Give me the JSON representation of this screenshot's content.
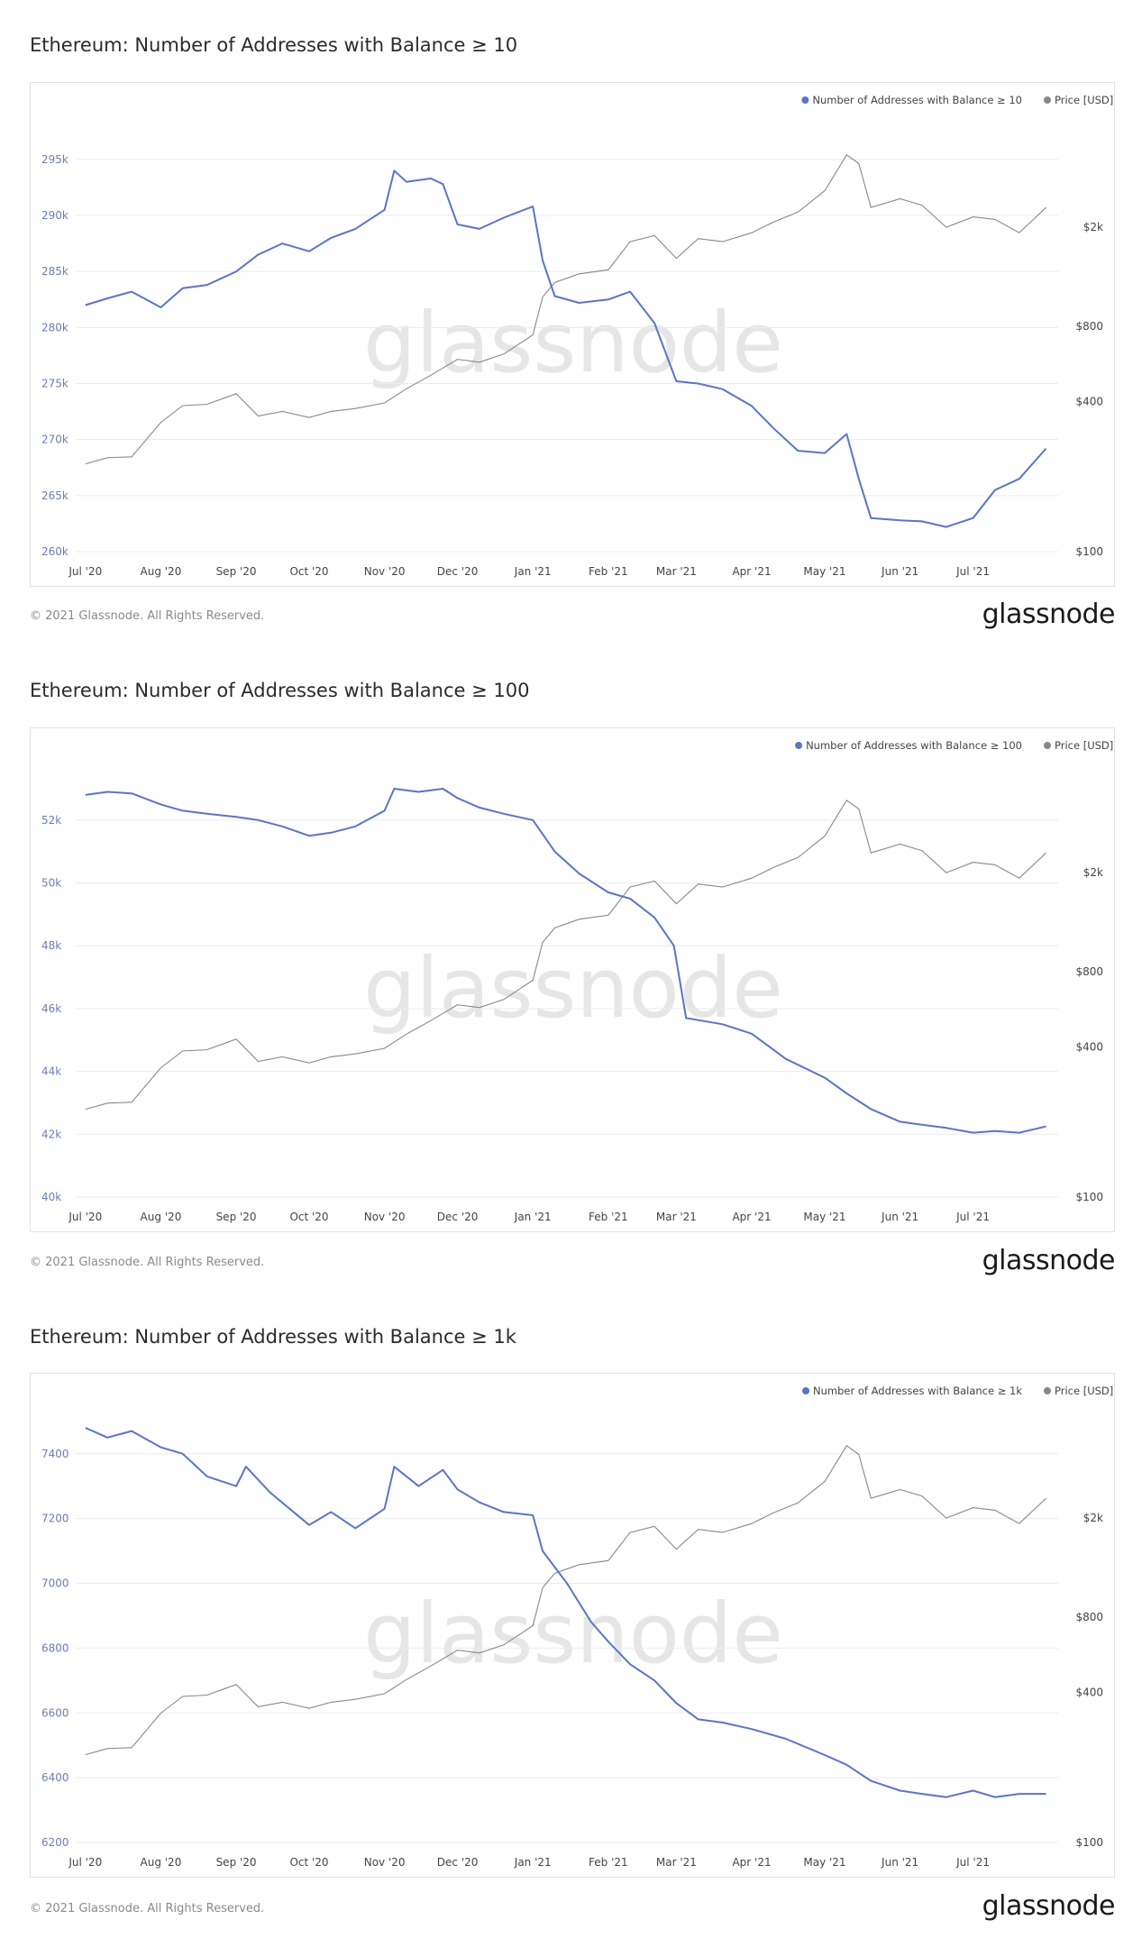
{
  "footer": {
    "copyright": "© 2021 Glassnode. All Rights Reserved.",
    "logo": "glassnode"
  },
  "watermark": "glassnode",
  "colors": {
    "series": "#5b74c7",
    "price": "#888888",
    "grid": "#ececec"
  },
  "chart_data": [
    {
      "type": "line",
      "title": "Ethereum: Number of Addresses with Balance ≥ 10",
      "legend": [
        "Number of Addresses with Balance ≥ 10",
        "Price [USD]"
      ],
      "legend_placement": "top-right",
      "x_ticks": [
        "Jul '20",
        "Aug '20",
        "Sep '20",
        "Oct '20",
        "Nov '20",
        "Dec '20",
        "Jan '21",
        "Feb '21",
        "Mar '21",
        "Apr '21",
        "May '21",
        "Jun '21",
        "Jul '21"
      ],
      "y_left_ticks": [
        "260k",
        "265k",
        "270k",
        "275k",
        "280k",
        "285k",
        "290k",
        "295k"
      ],
      "y_left_range": [
        260000,
        297000
      ],
      "y_right_ticks": [
        "$100",
        "$400",
        "$800",
        "$2k"
      ],
      "grid": true,
      "series": [
        {
          "name": "Number of Addresses with Balance ≥ 10",
          "axis": "left",
          "x": [
            "2020-07-01",
            "2020-07-10",
            "2020-07-20",
            "2020-08-01",
            "2020-08-10",
            "2020-08-20",
            "2020-09-01",
            "2020-09-10",
            "2020-09-20",
            "2020-10-01",
            "2020-10-10",
            "2020-10-20",
            "2020-11-01",
            "2020-11-05",
            "2020-11-10",
            "2020-11-20",
            "2020-11-25",
            "2020-12-01",
            "2020-12-10",
            "2020-12-20",
            "2021-01-01",
            "2021-01-05",
            "2021-01-10",
            "2021-01-20",
            "2021-02-01",
            "2021-02-10",
            "2021-02-20",
            "2021-03-01",
            "2021-03-10",
            "2021-03-20",
            "2021-04-01",
            "2021-04-10",
            "2021-04-20",
            "2021-05-01",
            "2021-05-10",
            "2021-05-15",
            "2021-05-20",
            "2021-06-01",
            "2021-06-10",
            "2021-06-20",
            "2021-07-01",
            "2021-07-10",
            "2021-07-20",
            "2021-07-31"
          ],
          "values": [
            282000,
            282600,
            283200,
            281800,
            283500,
            283800,
            285000,
            286500,
            287500,
            286800,
            288000,
            288800,
            290500,
            294000,
            293000,
            293300,
            292800,
            289200,
            288800,
            289800,
            290800,
            286000,
            282800,
            282200,
            282500,
            283200,
            280400,
            275200,
            275000,
            274500,
            273000,
            271000,
            269000,
            268800,
            270500,
            266500,
            263000,
            262800,
            262700,
            262200,
            263000,
            265500,
            266500,
            269200
          ]
        },
        {
          "name": "Price [USD]",
          "axis": "right",
          "x": [
            "2020-07-01",
            "2020-07-10",
            "2020-07-20",
            "2020-08-01",
            "2020-08-10",
            "2020-08-20",
            "2020-09-01",
            "2020-09-10",
            "2020-09-20",
            "2020-10-01",
            "2020-10-10",
            "2020-10-20",
            "2020-11-01",
            "2020-11-10",
            "2020-11-20",
            "2020-12-01",
            "2020-12-10",
            "2020-12-20",
            "2021-01-01",
            "2021-01-05",
            "2021-01-10",
            "2021-01-20",
            "2021-02-01",
            "2021-02-10",
            "2021-02-20",
            "2021-03-01",
            "2021-03-10",
            "2021-03-20",
            "2021-04-01",
            "2021-04-10",
            "2021-04-20",
            "2021-05-01",
            "2021-05-10",
            "2021-05-15",
            "2021-05-20",
            "2021-06-01",
            "2021-06-10",
            "2021-06-20",
            "2021-07-01",
            "2021-07-10",
            "2021-07-20",
            "2021-07-31"
          ],
          "values": [
            225,
            238,
            240,
            330,
            385,
            390,
            430,
            350,
            365,
            345,
            365,
            375,
            395,
            450,
            510,
            590,
            575,
            620,
            740,
            1050,
            1200,
            1300,
            1350,
            1750,
            1850,
            1500,
            1800,
            1750,
            1900,
            2100,
            2300,
            2800,
            3900,
            3600,
            2400,
            2600,
            2450,
            2000,
            2200,
            2150,
            1900,
            2400
          ]
        }
      ]
    },
    {
      "type": "line",
      "title": "Ethereum: Number of Addresses with Balance ≥ 100",
      "legend": [
        "Number of Addresses with Balance ≥ 100",
        "Price [USD]"
      ],
      "legend_placement": "top-right",
      "x_ticks": [
        "Jul '20",
        "Aug '20",
        "Sep '20",
        "Oct '20",
        "Nov '20",
        "Dec '20",
        "Jan '21",
        "Feb '21",
        "Mar '21",
        "Apr '21",
        "May '21",
        "Jun '21",
        "Jul '21"
      ],
      "y_left_ticks": [
        "40k",
        "42k",
        "44k",
        "46k",
        "48k",
        "50k",
        "52k"
      ],
      "y_left_range": [
        40000,
        53200
      ],
      "y_right_ticks": [
        "$100",
        "$400",
        "$800",
        "$2k"
      ],
      "grid": true,
      "series": [
        {
          "name": "Number of Addresses with Balance ≥ 100",
          "axis": "left",
          "x": [
            "2020-07-01",
            "2020-07-10",
            "2020-07-20",
            "2020-08-01",
            "2020-08-10",
            "2020-08-20",
            "2020-09-01",
            "2020-09-10",
            "2020-09-20",
            "2020-10-01",
            "2020-10-10",
            "2020-10-20",
            "2020-11-01",
            "2020-11-05",
            "2020-11-15",
            "2020-11-25",
            "2020-12-01",
            "2020-12-10",
            "2020-12-20",
            "2021-01-01",
            "2021-01-10",
            "2021-01-20",
            "2021-02-01",
            "2021-02-10",
            "2021-02-20",
            "2021-02-28",
            "2021-03-05",
            "2021-03-20",
            "2021-04-01",
            "2021-04-15",
            "2021-05-01",
            "2021-05-10",
            "2021-05-20",
            "2021-06-01",
            "2021-06-10",
            "2021-06-20",
            "2021-07-01",
            "2021-07-10",
            "2021-07-20",
            "2021-07-31"
          ],
          "values": [
            52800,
            52900,
            52850,
            52500,
            52300,
            52200,
            52100,
            52000,
            51800,
            51500,
            51600,
            51800,
            52300,
            53000,
            52900,
            53000,
            52700,
            52400,
            52200,
            52000,
            51000,
            50300,
            49700,
            49500,
            48900,
            48000,
            45700,
            45500,
            45200,
            44400,
            43800,
            43300,
            42800,
            42400,
            42300,
            42200,
            42050,
            42100,
            42050,
            42250
          ]
        },
        {
          "name": "Price [USD]",
          "axis": "right",
          "x": [
            "2020-07-01",
            "2020-07-10",
            "2020-07-20",
            "2020-08-01",
            "2020-08-10",
            "2020-08-20",
            "2020-09-01",
            "2020-09-10",
            "2020-09-20",
            "2020-10-01",
            "2020-10-10",
            "2020-10-20",
            "2020-11-01",
            "2020-11-10",
            "2020-11-20",
            "2020-12-01",
            "2020-12-10",
            "2020-12-20",
            "2021-01-01",
            "2021-01-05",
            "2021-01-10",
            "2021-01-20",
            "2021-02-01",
            "2021-02-10",
            "2021-02-20",
            "2021-03-01",
            "2021-03-10",
            "2021-03-20",
            "2021-04-01",
            "2021-04-10",
            "2021-04-20",
            "2021-05-01",
            "2021-05-10",
            "2021-05-15",
            "2021-05-20",
            "2021-06-01",
            "2021-06-10",
            "2021-06-20",
            "2021-07-01",
            "2021-07-10",
            "2021-07-20",
            "2021-07-31"
          ],
          "values": [
            225,
            238,
            240,
            330,
            385,
            390,
            430,
            350,
            365,
            345,
            365,
            375,
            395,
            450,
            510,
            590,
            575,
            620,
            740,
            1050,
            1200,
            1300,
            1350,
            1750,
            1850,
            1500,
            1800,
            1750,
            1900,
            2100,
            2300,
            2800,
            3900,
            3600,
            2400,
            2600,
            2450,
            2000,
            2200,
            2150,
            1900,
            2400
          ]
        }
      ]
    },
    {
      "type": "line",
      "title": "Ethereum: Number of Addresses with Balance ≥ 1k",
      "legend": [
        "Number of Addresses with Balance ≥ 1k",
        "Price [USD]"
      ],
      "legend_placement": "top-right",
      "x_ticks": [
        "Jul '20",
        "Aug '20",
        "Sep '20",
        "Oct '20",
        "Nov '20",
        "Dec '20",
        "Jan '21",
        "Feb '21",
        "Mar '21",
        "Apr '21",
        "May '21",
        "Jun '21",
        "Jul '21"
      ],
      "y_left_ticks": [
        "6200",
        "6400",
        "6600",
        "6800",
        "7000",
        "7200",
        "7400"
      ],
      "y_left_range": [
        6200,
        7480
      ],
      "y_right_ticks": [
        "$100",
        "$400",
        "$800",
        "$2k"
      ],
      "grid": true,
      "series": [
        {
          "name": "Number of Addresses with Balance ≥ 1k",
          "axis": "left",
          "x": [
            "2020-07-01",
            "2020-07-10",
            "2020-07-20",
            "2020-08-01",
            "2020-08-10",
            "2020-08-20",
            "2020-09-01",
            "2020-09-05",
            "2020-09-15",
            "2020-10-01",
            "2020-10-10",
            "2020-10-20",
            "2020-11-01",
            "2020-11-05",
            "2020-11-15",
            "2020-11-25",
            "2020-12-01",
            "2020-12-10",
            "2020-12-20",
            "2021-01-01",
            "2021-01-05",
            "2021-01-15",
            "2021-01-25",
            "2021-02-01",
            "2021-02-10",
            "2021-02-20",
            "2021-03-01",
            "2021-03-10",
            "2021-03-20",
            "2021-04-01",
            "2021-04-15",
            "2021-05-01",
            "2021-05-10",
            "2021-05-20",
            "2021-06-01",
            "2021-06-10",
            "2021-06-20",
            "2021-07-01",
            "2021-07-10",
            "2021-07-20",
            "2021-07-31"
          ],
          "values": [
            7480,
            7450,
            7470,
            7420,
            7400,
            7330,
            7300,
            7360,
            7280,
            7180,
            7220,
            7170,
            7230,
            7360,
            7300,
            7350,
            7290,
            7250,
            7220,
            7210,
            7100,
            7000,
            6880,
            6820,
            6750,
            6700,
            6630,
            6580,
            6570,
            6550,
            6520,
            6470,
            6440,
            6390,
            6360,
            6350,
            6340,
            6360,
            6340,
            6350,
            6350
          ]
        },
        {
          "name": "Price [USD]",
          "axis": "right",
          "x": [
            "2020-07-01",
            "2020-07-10",
            "2020-07-20",
            "2020-08-01",
            "2020-08-10",
            "2020-08-20",
            "2020-09-01",
            "2020-09-10",
            "2020-09-20",
            "2020-10-01",
            "2020-10-10",
            "2020-10-20",
            "2020-11-01",
            "2020-11-10",
            "2020-11-20",
            "2020-12-01",
            "2020-12-10",
            "2020-12-20",
            "2021-01-01",
            "2021-01-05",
            "2021-01-10",
            "2021-01-20",
            "2021-02-01",
            "2021-02-10",
            "2021-02-20",
            "2021-03-01",
            "2021-03-10",
            "2021-03-20",
            "2021-04-01",
            "2021-04-10",
            "2021-04-20",
            "2021-05-01",
            "2021-05-10",
            "2021-05-15",
            "2021-05-20",
            "2021-06-01",
            "2021-06-10",
            "2021-06-20",
            "2021-07-01",
            "2021-07-10",
            "2021-07-20",
            "2021-07-31"
          ],
          "values": [
            225,
            238,
            240,
            330,
            385,
            390,
            430,
            350,
            365,
            345,
            365,
            375,
            395,
            450,
            510,
            590,
            575,
            620,
            740,
            1050,
            1200,
            1300,
            1350,
            1750,
            1850,
            1500,
            1800,
            1750,
            1900,
            2100,
            2300,
            2800,
            3900,
            3600,
            2400,
            2600,
            2450,
            2000,
            2200,
            2150,
            1900,
            2400
          ]
        }
      ]
    }
  ]
}
